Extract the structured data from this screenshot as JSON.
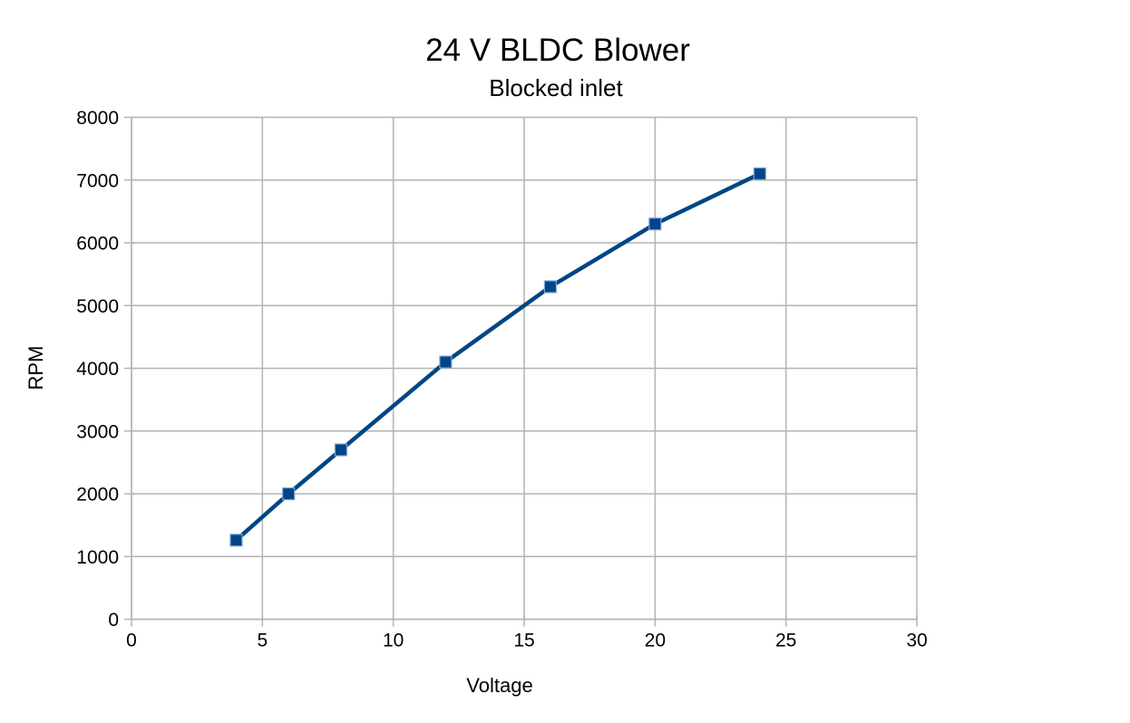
{
  "chart_data": {
    "type": "line",
    "title": "24 V BLDC Blower",
    "subtitle": "Blocked inlet",
    "xlabel": "Voltage",
    "ylabel": "RPM",
    "x": [
      4,
      6,
      8,
      12,
      16,
      20,
      24
    ],
    "y": [
      1260,
      2000,
      2700,
      4100,
      5300,
      6300,
      7100
    ],
    "xlim": [
      0,
      30
    ],
    "ylim": [
      0,
      8000
    ],
    "x_ticks": [
      0,
      5,
      10,
      15,
      20,
      25,
      30
    ],
    "y_ticks": [
      0,
      1000,
      2000,
      3000,
      4000,
      5000,
      6000,
      7000,
      8000
    ],
    "grid": true,
    "legend": "none",
    "marker": "square",
    "colors": {
      "series_line": "#004586",
      "marker_fill": "#004586",
      "marker_border": "#7da7d8",
      "gridline": "#b3b3b3",
      "axis_line": "#b3b3b3",
      "text": "#000000",
      "background": "#ffffff"
    }
  }
}
